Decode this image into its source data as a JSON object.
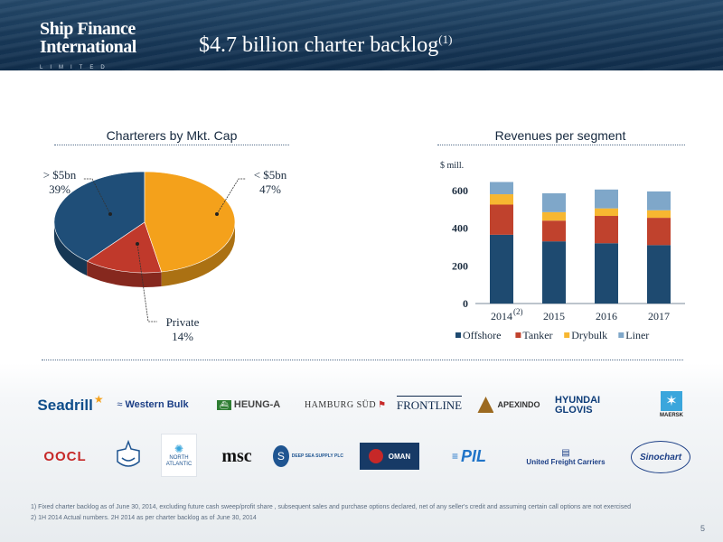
{
  "header": {
    "logo_line1": "Ship Finance",
    "logo_line2": "International",
    "logo_line3": "LIMITED",
    "title": "$4.7 billion charter backlog",
    "title_note": "(1)"
  },
  "left_section": {
    "title": "Charterers by Mkt. Cap",
    "chart_data": {
      "type": "pie",
      "labels": [
        "> $5bn",
        "< $5bn",
        "Private"
      ],
      "values": [
        39,
        47,
        14
      ],
      "value_labels": [
        "39%",
        "47%",
        "14%"
      ],
      "colors": [
        "#1f4e78",
        "#f4a11b",
        "#c0392b"
      ]
    }
  },
  "right_section": {
    "title": "Revenues per segment",
    "chart_data": {
      "type": "bar",
      "stacked": true,
      "unit_label": "$ mill.",
      "categories": [
        "2014",
        "2015",
        "2016",
        "2017"
      ],
      "category_notes": [
        "(2)",
        "",
        "",
        ""
      ],
      "ylim": [
        0,
        700
      ],
      "yticks": [
        0,
        200,
        400,
        600
      ],
      "series": [
        {
          "name": "Offshore",
          "values": [
            365,
            330,
            320,
            310
          ],
          "color": "#1e4a70"
        },
        {
          "name": "Tanker",
          "values": [
            160,
            110,
            145,
            145
          ],
          "color": "#c0422d"
        },
        {
          "name": "Drybulk",
          "values": [
            55,
            45,
            40,
            40
          ],
          "color": "#f7b731"
        },
        {
          "name": "Liner",
          "values": [
            65,
            100,
            100,
            100
          ],
          "color": "#7fa7c9"
        }
      ]
    }
  },
  "logos": {
    "row1": [
      "Seadrill",
      "Western Bulk",
      "HEUNG-A",
      "HAMBURG SÜD",
      "FRONTLINE",
      "APEXINDO",
      "HYUNDAI GLOVIS",
      "MAERSK"
    ],
    "row2": [
      "OOCL",
      "",
      "NORTH ATLANTIC",
      "msc",
      "DEEP SEA SUPPLY PLC",
      "OMAN",
      "PIL",
      "United Freight Carriers",
      "Sinochart"
    ]
  },
  "footnotes": [
    "1)  Fixed charter backlog as of June 30, 2014, excluding future cash sweep/profit share , subsequent sales and purchase options declared, net of any seller's credit and assuming certain call options are not exercised",
    "2)  1H 2014 Actual numbers. 2H 2014 as per charter backlog as of June 30, 2014"
  ],
  "page_number": "5"
}
